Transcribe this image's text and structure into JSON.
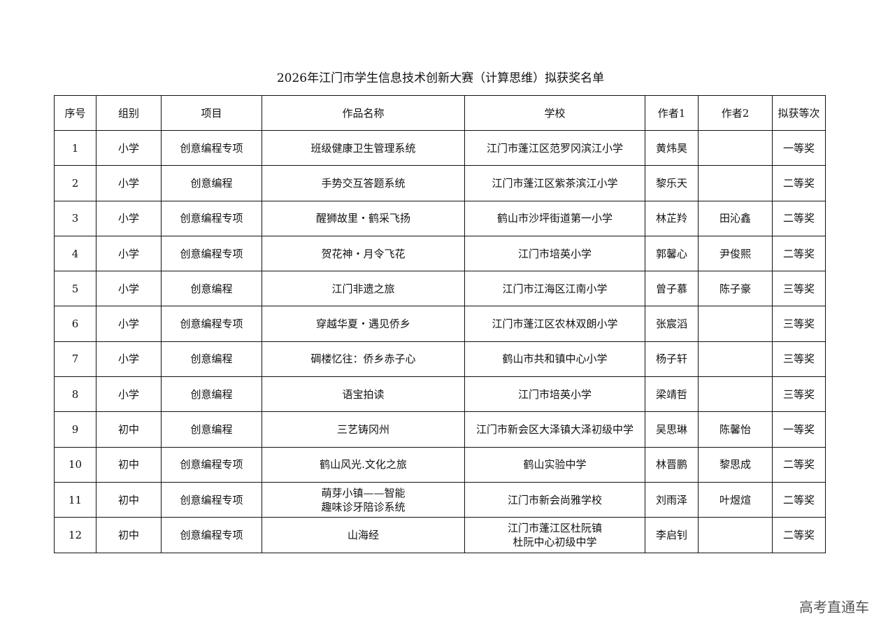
{
  "title": "2026年江门市学生信息技术创新大赛（计算思维）拟获奖名单",
  "columns": [
    "序号",
    "组别",
    "项目",
    "作品名称",
    "学校",
    "作者1",
    "作者2",
    "拟获等次"
  ],
  "rows": [
    [
      "1",
      "小学",
      "创意编程专项",
      "班级健康卫生管理系统",
      "江门市蓬江区范罗冈滨江小学",
      "黄炜昊",
      "",
      "一等奖"
    ],
    [
      "2",
      "小学",
      "创意编程",
      "手势交互答题系统",
      "江门市蓬江区紫茶滨江小学",
      "黎乐天",
      "",
      "二等奖"
    ],
    [
      "3",
      "小学",
      "创意编程专项",
      "醒狮故里・鹤采飞扬",
      "鹤山市沙坪街道第一小学",
      "林芷羚",
      "田沁鑫",
      "二等奖"
    ],
    [
      "4",
      "小学",
      "创意编程专项",
      "贺花神・月令飞花",
      "江门市培英小学",
      "郭馨心",
      "尹俊熙",
      "二等奖"
    ],
    [
      "5",
      "小学",
      "创意编程",
      "江门非遗之旅",
      "江门市江海区江南小学",
      "曾子慕",
      "陈子豪",
      "三等奖"
    ],
    [
      "6",
      "小学",
      "创意编程专项",
      "穿越华夏・遇见侨乡",
      "江门市蓬江区农林双朗小学",
      "张宸滔",
      "",
      "三等奖"
    ],
    [
      "7",
      "小学",
      "创意编程",
      "碉楼忆往：侨乡赤子心",
      "鹤山市共和镇中心小学",
      "杨子轩",
      "",
      "三等奖"
    ],
    [
      "8",
      "小学",
      "创意编程",
      "语宝拍读",
      "江门市培英小学",
      "梁靖哲",
      "",
      "三等奖"
    ],
    [
      "9",
      "初中",
      "创意编程",
      "三艺铸冈州",
      "江门市新会区大泽镇大泽初级中学",
      "吴思琳",
      "陈馨怡",
      "一等奖"
    ],
    [
      "10",
      "初中",
      "创意编程专项",
      "鹤山风光.文化之旅",
      "鹤山实验中学",
      "林晋鹏",
      "黎思成",
      "二等奖"
    ],
    [
      "11",
      "初中",
      "创意编程专项",
      "萌芽小镇——智能\n趣味诊牙陪诊系统",
      "江门市新会尚雅学校",
      "刘雨泽",
      "叶煜煊",
      "二等奖"
    ],
    [
      "12",
      "初中",
      "创意编程专项",
      "山海经",
      "江门市蓬江区杜阮镇\n杜阮中心初级中学",
      "李启钊",
      "",
      "二等奖"
    ]
  ],
  "watermark": "高考直通车"
}
